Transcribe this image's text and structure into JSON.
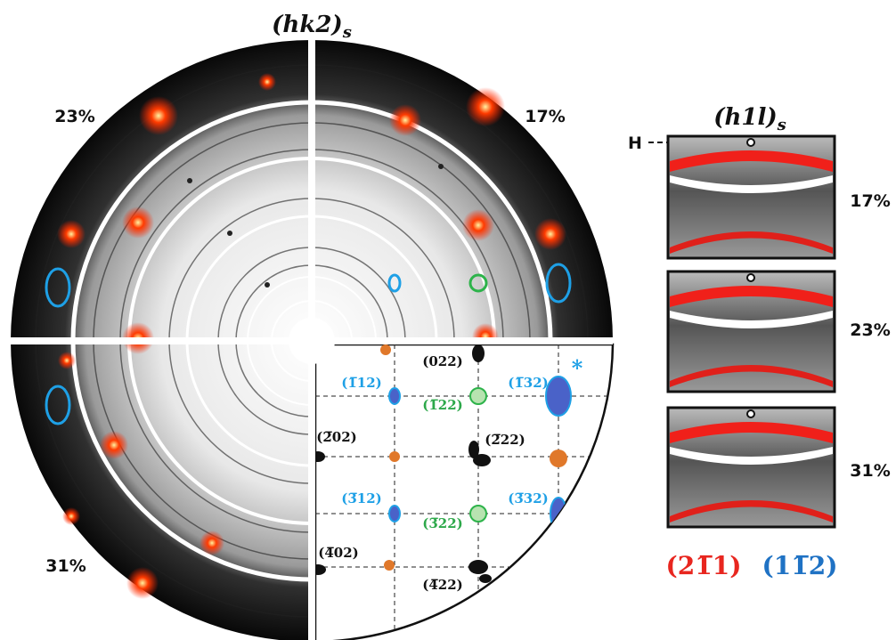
{
  "left_panel": {
    "title": "(hk2)",
    "title_subscript": "s",
    "quadrant_labels": [
      "23%",
      "17%",
      "31%"
    ],
    "black_indices": [
      "(022)",
      "(2̅02)",
      "(2̅22)",
      "(4̅02)",
      "(4̅22)"
    ],
    "blue_indices": [
      "(1̅12)",
      "(1̅32)",
      "(3̅12)",
      "(3̅32)"
    ],
    "green_indices": [
      "(1̅22)",
      "(3̅22)"
    ],
    "asterisk": "*"
  },
  "right_panel": {
    "title": "(h1l)",
    "title_subscript": "s",
    "marker": "H",
    "strain_labels": [
      "17%",
      "23%",
      "31%"
    ]
  },
  "legend": {
    "red": "(21̅1)",
    "blue": "(11̅2)"
  }
}
